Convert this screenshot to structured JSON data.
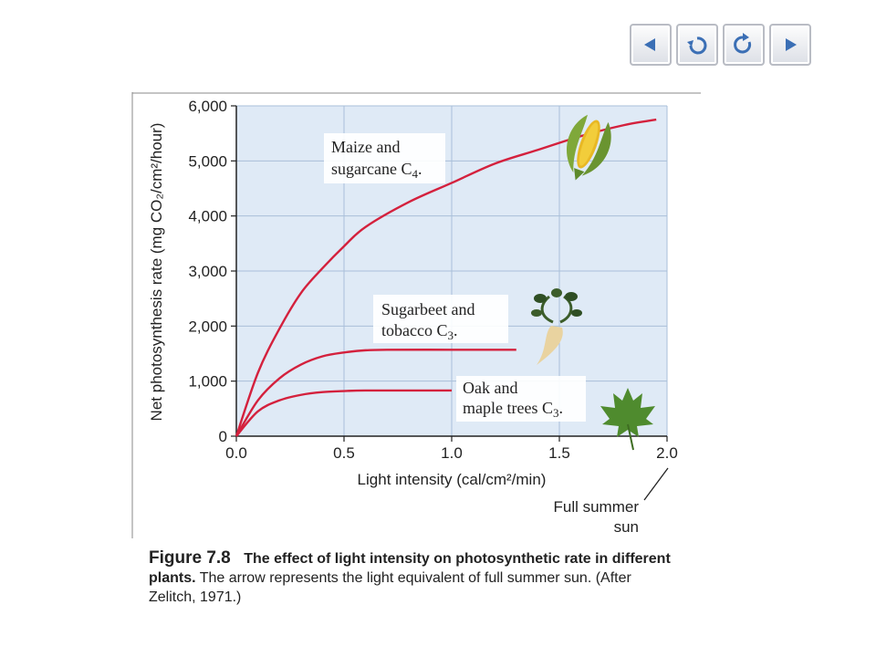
{
  "nav": {
    "buttons": [
      {
        "name": "previous-slide-button",
        "icon": "triangle-left-icon"
      },
      {
        "name": "return-button",
        "icon": "return-arrow-icon"
      },
      {
        "name": "replay-button",
        "icon": "circular-arrow-icon"
      },
      {
        "name": "next-slide-button",
        "icon": "triangle-right-icon"
      }
    ]
  },
  "chart_data": {
    "type": "line",
    "title": "",
    "xlabel": "Light intensity (cal/cm²/min)",
    "ylabel": "Net photosynthesis rate (mg CO₂/cm²/hour)",
    "xlim": [
      0,
      2.0
    ],
    "ylim": [
      0,
      6000
    ],
    "x_ticks": [
      "0.0",
      "0.5",
      "1.0",
      "1.5",
      "2.0"
    ],
    "y_ticks": [
      "0",
      "1,000",
      "2,000",
      "3,000",
      "4,000",
      "5,000",
      "6,000"
    ],
    "grid": true,
    "series": [
      {
        "name": "Maize and sugarcane C₄.",
        "x": [
          0,
          0.1,
          0.2,
          0.3,
          0.4,
          0.5,
          0.6,
          0.8,
          1.0,
          1.2,
          1.4,
          1.6,
          1.8,
          1.95
        ],
        "y": [
          0,
          1150,
          1950,
          2600,
          3050,
          3450,
          3800,
          4250,
          4600,
          4950,
          5200,
          5450,
          5650,
          5750
        ]
      },
      {
        "name": "Sugarbeet and tobacco C₃.",
        "x": [
          0,
          0.1,
          0.2,
          0.3,
          0.4,
          0.5,
          0.6,
          0.7,
          1.0,
          1.3
        ],
        "y": [
          0,
          650,
          1050,
          1300,
          1450,
          1520,
          1560,
          1570,
          1570,
          1570
        ]
      },
      {
        "name": "Oak and maple trees C₃.",
        "x": [
          0,
          0.1,
          0.2,
          0.3,
          0.4,
          0.5,
          0.6,
          0.8,
          1.0
        ],
        "y": [
          0,
          450,
          650,
          750,
          800,
          820,
          830,
          830,
          830
        ]
      }
    ],
    "annotations": {
      "arrow_label_line1": "Full summer",
      "arrow_label_line2": "sun"
    },
    "line_color": "#d4213d",
    "plot_bg": "#dfeaf6"
  },
  "labels": {
    "maize_l1": "Maize and",
    "maize_l2": "sugarcane C",
    "maize_sub": "4",
    "sugar_l1": "Sugarbeet and",
    "sugar_l2": "tobacco C",
    "sugar_sub": "3",
    "oak_l1": "Oak and",
    "oak_l2": "maple trees C",
    "oak_sub": "3"
  },
  "caption": {
    "figure": "Figure 7.8",
    "title": "The effect of light intensity on photosynthetic rate in different plants.",
    "body": "The arrow represents the light equivalent of full summer sun. (After Zelitch, 1971.)"
  }
}
